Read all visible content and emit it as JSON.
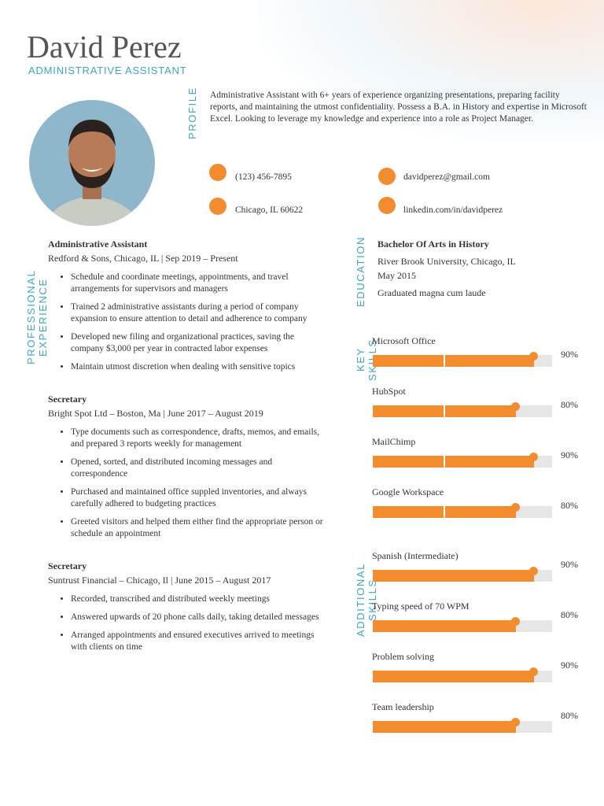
{
  "header": {
    "name": "David Perez",
    "title": "ADMINISTRATIVE ASSISTANT"
  },
  "profile": {
    "heading": "PROFILE",
    "text": "Administrative Assistant with 6+ years of experience organizing presentations, preparing facility reports, and maintaining the utmost confidentiality. Possess a B.A. in History and expertise in Microsoft Excel. Looking to leverage my knowledge and experience into a role as Project Manager."
  },
  "contact": {
    "phone": "(123) 456-7895",
    "email": "davidperez@gmail.com",
    "location": "Chicago, IL 60622",
    "linkedin": "linkedin.com/in/davidperez"
  },
  "experience": {
    "heading": "PROFESSIONAL EXPERIENCE",
    "jobs": [
      {
        "title": "Administrative Assistant",
        "company": "Redford & Sons, Chicago, IL | Sep 2019 – Present",
        "bullets": [
          "Schedule and coordinate meetings, appointments, and travel arrangements for supervisors and managers",
          "Trained 2 administrative assistants during a period of company expansion to ensure attention to detail and adherence to company",
          "Developed new filing and organizational practices, saving the company $3,000 per year in contracted labor expenses",
          "Maintain utmost discretion when dealing with sensitive topics"
        ]
      },
      {
        "title": "Secretary",
        "company": "Bright Spot Ltd – Boston, Ma | June 2017 – August 2019",
        "bullets": [
          "Type documents such as correspondence, drafts, memos, and emails, and prepared 3 reports weekly for management",
          "Opened, sorted, and distributed incoming messages and correspondence",
          "Purchased and maintained office suppled inventories, and always carefully adhered to budgeting practices",
          "Greeted visitors and helped them either find the appropriate person or schedule an appointment"
        ]
      },
      {
        "title": "Secretary",
        "company": "Suntrust Financial – Chicago, Il | June 2015 – August 2017",
        "bullets": [
          "Recorded, transcribed and distributed weekly meetings",
          "Answered upwards of 20 phone calls daily, taking detailed messages",
          "Arranged appointments and ensured executives arrived to meetings with clients on time"
        ]
      }
    ]
  },
  "education": {
    "heading": "EDUCATION",
    "degree": "Bachelor Of Arts in History",
    "school": "River Brook University, Chicago, IL",
    "date": "May 2015",
    "note": "Graduated magna cum laude"
  },
  "key_skills": {
    "heading": "KEY SKILLS",
    "names": [
      "Microsoft Office",
      "HubSpot",
      "MailChimp",
      "Google Workspace"
    ],
    "values": [
      90,
      80,
      90,
      80
    ],
    "value_labels": [
      "90%",
      "80%",
      "90%",
      "80%"
    ]
  },
  "additional_skills": {
    "heading": "ADDITIONAL SKILLS",
    "names": [
      "Spanish (Intermediate)",
      "Typing speed of 70 WPM",
      "Problem solving",
      "Team leadership"
    ],
    "values": [
      90,
      80,
      90,
      80
    ],
    "value_labels": [
      "90%",
      "80%",
      "90%",
      "80%"
    ]
  }
}
